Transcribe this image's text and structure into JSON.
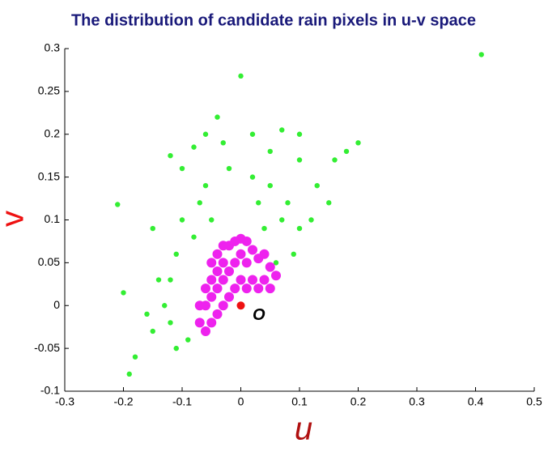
{
  "chart_data": {
    "type": "scatter",
    "title": "The distribution of candidate rain pixels in u-v space",
    "x_label": "u",
    "y_label": "v",
    "xlim": [
      -0.3,
      0.5
    ],
    "xticks": [
      -0.3,
      -0.2,
      -0.1,
      0,
      0.1,
      0.2,
      0.3,
      0.4,
      0.5
    ],
    "ylim": [
      -0.1,
      0.3
    ],
    "yticks": [
      -0.1,
      -0.05,
      0,
      0.05,
      0.1,
      0.15,
      0.2,
      0.25,
      0.3
    ],
    "series": [
      {
        "color": "#33ee33",
        "x": [
          0.41,
          0,
          0.2,
          -0.21,
          -0.04,
          0.07,
          0.16,
          0.18,
          -0.12,
          -0.08,
          -0.1,
          0.1,
          0.13,
          0.15,
          -0.15,
          -0.2,
          -0.19,
          -0.18,
          -0.15,
          -0.13,
          -0.12,
          -0.11,
          -0.1,
          -0.06,
          -0.02,
          0.02,
          0.05,
          0.08,
          0.1,
          0.12,
          0.09,
          0.06,
          -0.09,
          -0.11,
          -0.07,
          0.03,
          -0.05,
          0.07,
          -0.08,
          0.04,
          -0.14,
          -0.16,
          -0.12,
          0.05,
          -0.03,
          0.02,
          0.1,
          -0.06
        ],
        "y": [
          0.293,
          0.268,
          0.19,
          0.118,
          0.22,
          0.205,
          0.17,
          0.18,
          0.175,
          0.185,
          0.16,
          0.17,
          0.14,
          0.12,
          0.09,
          0.015,
          -0.08,
          -0.06,
          -0.03,
          0,
          0.03,
          0.06,
          0.1,
          0.14,
          0.16,
          0.15,
          0.14,
          0.12,
          0.09,
          0.1,
          0.06,
          0.05,
          -0.04,
          -0.05,
          0.12,
          0.12,
          0.1,
          0.1,
          0.08,
          0.09,
          0.03,
          -0.01,
          -0.02,
          0.18,
          0.19,
          0.2,
          0.2,
          0.2
        ]
      },
      {
        "color": "#ee22ee",
        "x": [
          -0.07,
          -0.07,
          -0.06,
          -0.06,
          -0.06,
          -0.05,
          -0.05,
          -0.05,
          -0.05,
          -0.04,
          -0.04,
          -0.04,
          -0.04,
          -0.03,
          -0.03,
          -0.03,
          -0.03,
          -0.02,
          -0.02,
          -0.02,
          -0.01,
          -0.01,
          -0.01,
          0,
          0,
          0,
          0.01,
          0.01,
          0.01,
          0.02,
          0.02,
          0.03,
          0.03,
          0.04,
          0.04,
          0.05,
          0.05,
          0.06
        ],
        "y": [
          -0.02,
          0,
          -0.03,
          0,
          0.02,
          -0.02,
          0.01,
          0.03,
          0.05,
          -0.01,
          0.02,
          0.04,
          0.06,
          0,
          0.03,
          0.05,
          0.07,
          0.01,
          0.04,
          0.07,
          0.02,
          0.05,
          0.075,
          0.03,
          0.06,
          0.078,
          0.02,
          0.05,
          0.075,
          0.03,
          0.065,
          0.02,
          0.055,
          0.03,
          0.06,
          0.02,
          0.045,
          0.035
        ]
      },
      {
        "color": "#ee1111",
        "x": [
          0
        ],
        "y": [
          0
        ]
      }
    ],
    "annotations": [
      {
        "text": "O",
        "x": 0.02,
        "y": -0.012
      }
    ]
  }
}
